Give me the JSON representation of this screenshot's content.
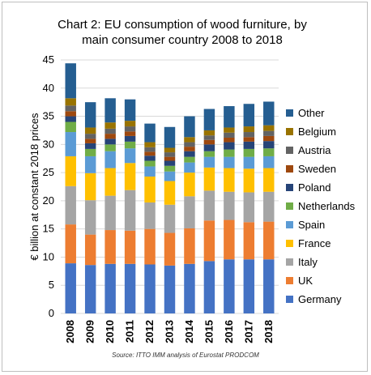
{
  "chart_data": {
    "type": "bar",
    "stacked": true,
    "title_line1": "Chart 2: EU consumption of wood furniture, by",
    "title_line2": "main consumer country 2008 to 2018",
    "ylabel": "€ billion at constant 2018 prices",
    "xlabel": "",
    "ylim": [
      0,
      45
    ],
    "yticks": [
      0,
      5,
      10,
      15,
      20,
      25,
      30,
      35,
      40,
      45
    ],
    "grid": true,
    "legend_position": "right",
    "source": "Source: ITTO IMM analysis of Eurostat PRODCOM",
    "categories": [
      "2008",
      "2009",
      "2010",
      "2011",
      "2012",
      "2013",
      "2014",
      "2015",
      "2016",
      "2017",
      "2018"
    ],
    "series": [
      {
        "name": "Germany",
        "color": "#4472c4",
        "values": [
          8.9,
          8.6,
          8.8,
          8.8,
          8.7,
          8.5,
          8.8,
          9.3,
          9.6,
          9.6,
          9.6
        ]
      },
      {
        "name": "UK",
        "color": "#ed7d31",
        "values": [
          6.9,
          5.4,
          6.0,
          5.9,
          6.3,
          5.8,
          6.3,
          7.2,
          7.0,
          6.6,
          6.7
        ]
      },
      {
        "name": "Italy",
        "color": "#a5a5a5",
        "values": [
          6.8,
          6.1,
          6.1,
          7.2,
          4.7,
          5.0,
          5.7,
          5.3,
          5.0,
          5.3,
          5.3
        ]
      },
      {
        "name": "France",
        "color": "#ffc000",
        "values": [
          5.3,
          4.8,
          4.9,
          4.8,
          4.6,
          4.2,
          4.2,
          4.1,
          4.2,
          4.2,
          4.2
        ]
      },
      {
        "name": "Spain",
        "color": "#5b9bd5",
        "values": [
          4.3,
          3.0,
          3.0,
          2.6,
          1.8,
          1.7,
          1.8,
          1.9,
          2.0,
          2.1,
          2.1
        ]
      },
      {
        "name": "Netherlands",
        "color": "#70ad47",
        "values": [
          1.8,
          1.3,
          1.2,
          1.2,
          1.0,
          1.0,
          1.0,
          1.0,
          1.3,
          1.4,
          1.4
        ]
      },
      {
        "name": "Poland",
        "color": "#264478",
        "values": [
          1.0,
          1.0,
          1.0,
          1.0,
          0.9,
          0.9,
          1.0,
          1.2,
          1.3,
          1.3,
          1.3
        ]
      },
      {
        "name": "Sweden",
        "color": "#9e480e",
        "values": [
          0.9,
          0.8,
          0.9,
          0.8,
          0.7,
          0.7,
          0.8,
          0.8,
          0.8,
          0.8,
          0.9
        ]
      },
      {
        "name": "Austria",
        "color": "#636363",
        "values": [
          1.0,
          0.9,
          0.9,
          0.9,
          0.8,
          0.8,
          0.8,
          0.8,
          0.9,
          0.9,
          0.9
        ]
      },
      {
        "name": "Belgium",
        "color": "#997300",
        "values": [
          1.3,
          1.1,
          1.1,
          1.0,
          0.9,
          0.8,
          0.9,
          0.9,
          0.9,
          1.0,
          1.0
        ]
      },
      {
        "name": "Other",
        "color": "#255e91",
        "values": [
          6.2,
          4.5,
          4.3,
          3.8,
          3.3,
          3.7,
          3.7,
          3.8,
          3.8,
          4.0,
          4.2
        ]
      }
    ]
  }
}
